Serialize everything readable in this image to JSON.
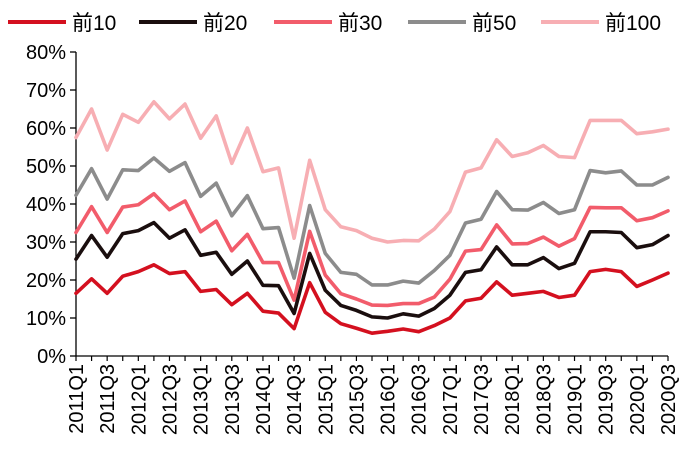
{
  "chart_data": {
    "type": "line",
    "title": "",
    "xlabel": "",
    "ylabel": "",
    "ylim": [
      0,
      80
    ],
    "y_ticks": [
      0,
      10,
      20,
      30,
      40,
      50,
      60,
      70,
      80
    ],
    "y_tick_labels": [
      "0%",
      "10%",
      "20%",
      "30%",
      "40%",
      "50%",
      "60%",
      "70%",
      "80%"
    ],
    "x": [
      "2011Q1",
      "2011Q2",
      "2011Q3",
      "2011Q4",
      "2012Q1",
      "2012Q2",
      "2012Q3",
      "2012Q4",
      "2013Q1",
      "2013Q2",
      "2013Q3",
      "2013Q4",
      "2014Q1",
      "2014Q2",
      "2014Q3",
      "2014Q4",
      "2015Q1",
      "2015Q2",
      "2015Q3",
      "2015Q4",
      "2016Q1",
      "2016Q2",
      "2016Q3",
      "2016Q4",
      "2017Q1",
      "2017Q2",
      "2017Q3",
      "2017Q4",
      "2018Q1",
      "2018Q2",
      "2018Q3",
      "2018Q4",
      "2019Q1",
      "2019Q2",
      "2019Q3",
      "2019Q4",
      "2020Q1",
      "2020Q2",
      "2020Q3"
    ],
    "x_tick_labels": [
      "2011Q1",
      "2011Q3",
      "2012Q1",
      "2012Q3",
      "2013Q1",
      "2013Q3",
      "2014Q1",
      "2014Q3",
      "2015Q1",
      "2015Q3",
      "2016Q1",
      "2016Q3",
      "2017Q1",
      "2017Q3",
      "2018Q1",
      "2018Q3",
      "2019Q1",
      "2019Q3",
      "2020Q1",
      "2020Q3"
    ],
    "grid": false,
    "legend_position": "top",
    "series": [
      {
        "name": "前10",
        "color": "#d4101f",
        "values": [
          16.5,
          20.3,
          16.5,
          21,
          22.2,
          24,
          21.7,
          22.2,
          17,
          17.5,
          13.5,
          16.5,
          11.8,
          11.3,
          7.2,
          19.3,
          11.5,
          8.5,
          7.3,
          6,
          6.5,
          7.1,
          6.4,
          8,
          10,
          14.5,
          15.2,
          19.5,
          16,
          16.5,
          17,
          15.4,
          16,
          22.2,
          22.8,
          22.2,
          18.3,
          20,
          21.8
        ]
      },
      {
        "name": "前20",
        "color": "#1a0e0e",
        "values": [
          25.5,
          31.7,
          26,
          32.2,
          33,
          35.1,
          31,
          33.2,
          26.5,
          27.3,
          21.5,
          25,
          18.6,
          18.5,
          11.2,
          27,
          17.3,
          13.3,
          12,
          10.3,
          10,
          11.1,
          10.5,
          12.5,
          16,
          22,
          22.7,
          28.7,
          24,
          24,
          25.9,
          23,
          24.4,
          32.7,
          32.7,
          32.5,
          28.5,
          29.3,
          31.7
        ]
      },
      {
        "name": "前30",
        "color": "#f25c6b",
        "values": [
          32.5,
          39.3,
          32.5,
          39.2,
          39.8,
          42.7,
          38.5,
          40.8,
          32.7,
          35.5,
          27.7,
          32,
          24.6,
          24.6,
          14.7,
          32.8,
          21.3,
          16.4,
          15,
          13.4,
          13.3,
          13.8,
          13.8,
          15.5,
          20.2,
          27.6,
          28,
          34.5,
          29.5,
          29.6,
          31.3,
          28.9,
          30.9,
          39.1,
          39,
          39,
          35.6,
          36.4,
          38.2
        ]
      },
      {
        "name": "前50",
        "color": "#8c8c8c",
        "values": [
          42.3,
          49.3,
          41.3,
          49,
          48.8,
          52.1,
          48.6,
          50.9,
          42,
          45.5,
          36.9,
          42.2,
          33.5,
          33.8,
          20.5,
          39.6,
          27,
          22,
          21.5,
          18.7,
          18.7,
          19.7,
          19.2,
          22.5,
          26.5,
          35,
          36,
          43.3,
          38.5,
          38.4,
          40.4,
          37.5,
          38.5,
          48.8,
          48.2,
          48.7,
          45,
          45,
          47
        ]
      },
      {
        "name": "前100",
        "color": "#f7aeb3",
        "values": [
          57.5,
          65,
          54.2,
          63.6,
          61.5,
          66.9,
          62.4,
          66.3,
          57.3,
          63.2,
          50.7,
          60,
          48.5,
          49.5,
          31,
          51.5,
          38.5,
          34,
          33,
          31,
          30,
          30.4,
          30.3,
          33.4,
          38,
          48.4,
          49.5,
          56.9,
          52.5,
          53.5,
          55.4,
          52.5,
          52.2,
          62,
          62,
          62,
          58.5,
          59,
          59.7
        ]
      }
    ]
  }
}
